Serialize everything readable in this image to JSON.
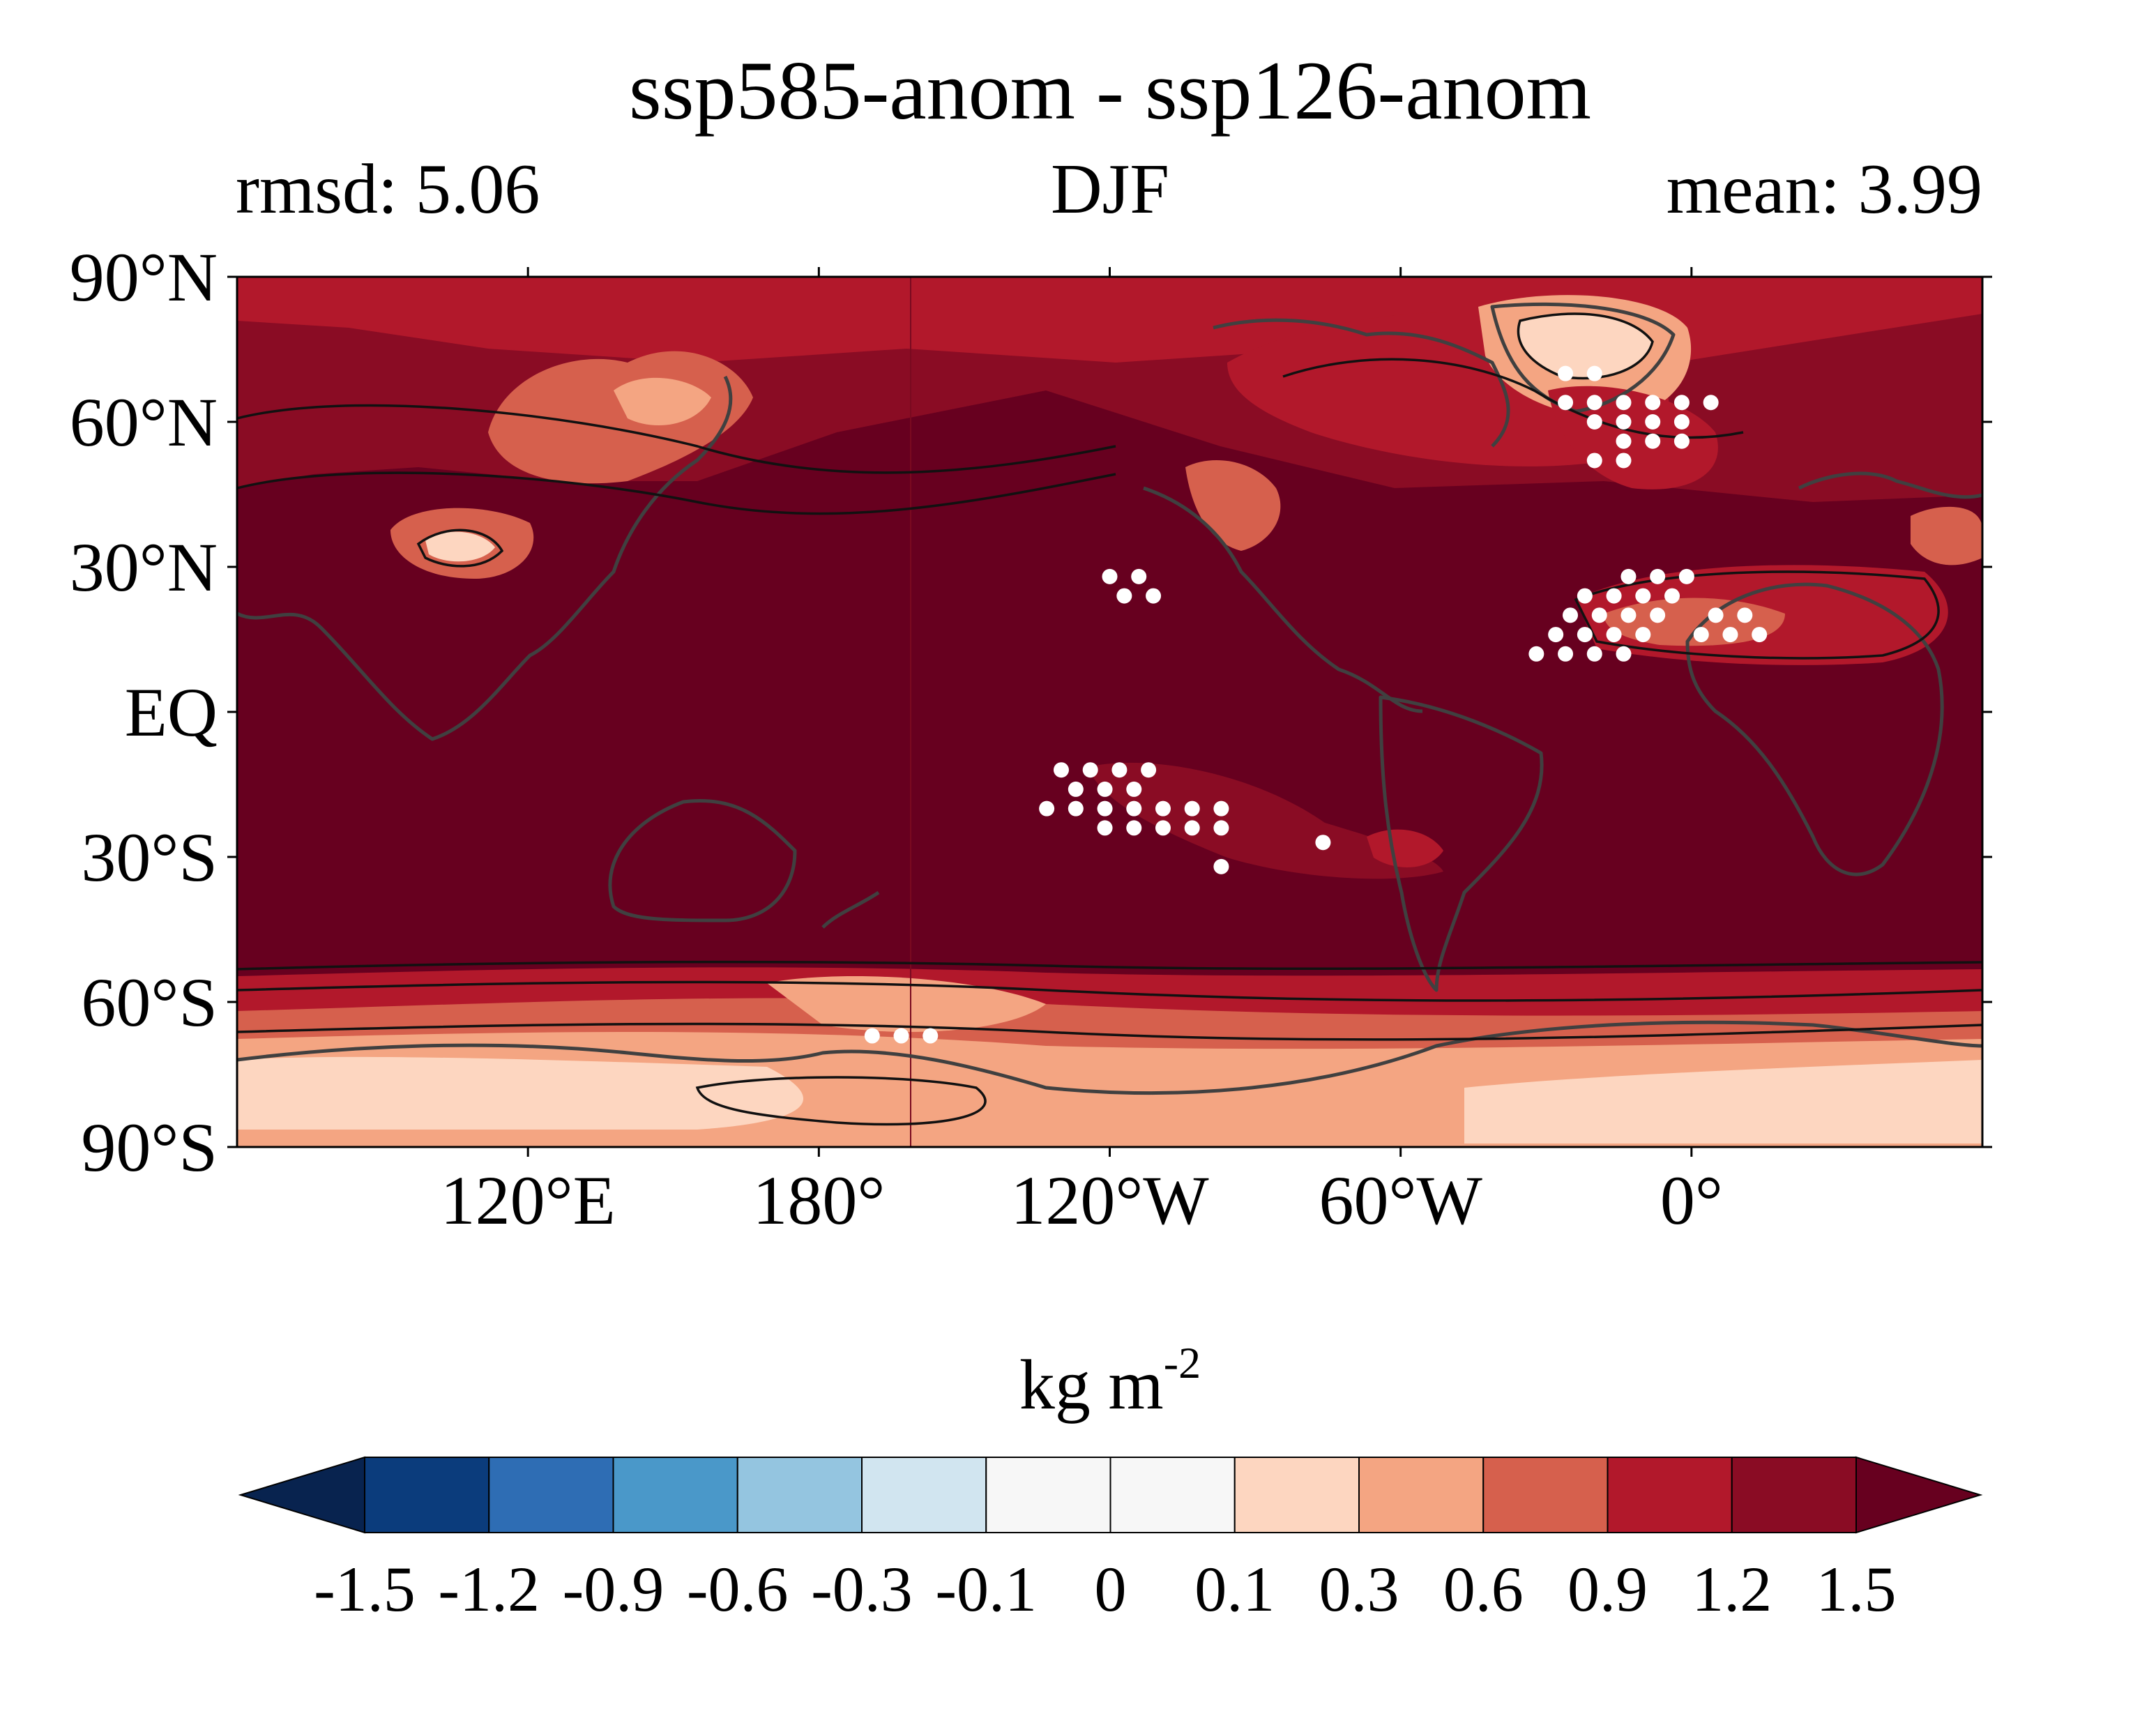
{
  "figure": {
    "title": "ssp585-anom - ssp126-anom",
    "subtitle_left": "rmsd: 5.06",
    "subtitle_center": "DJF",
    "subtitle_right": "mean: 3.99"
  },
  "map": {
    "lon_range": [
      60,
      420
    ],
    "lat_range": [
      -90,
      90
    ],
    "lat_ticks": [
      {
        "value": 90,
        "label": "90°N"
      },
      {
        "value": 60,
        "label": "60°N"
      },
      {
        "value": 30,
        "label": "30°N"
      },
      {
        "value": 0,
        "label": "EQ"
      },
      {
        "value": -30,
        "label": "30°S"
      },
      {
        "value": -60,
        "label": "60°S"
      },
      {
        "value": -90,
        "label": "90°S"
      }
    ],
    "lon_ticks": [
      {
        "value": 120,
        "label": "120°E"
      },
      {
        "value": 180,
        "label": "180°"
      },
      {
        "value": 240,
        "label": "120°W"
      },
      {
        "value": 300,
        "label": "60°W"
      },
      {
        "value": 360,
        "label": "0°"
      }
    ],
    "background_color": "#67001f",
    "coast_color": "#404040",
    "contour_color": "#111111",
    "stipple_color": "#ffffff"
  },
  "colorbar": {
    "units_label": "kg m",
    "units_exponent": "-2",
    "levels": [
      "-1.5",
      "-1.2",
      "-0.9",
      "-0.6",
      "-0.3",
      "-0.1",
      "0",
      "0.1",
      "0.3",
      "0.6",
      "0.9",
      "1.2",
      "1.5"
    ],
    "colors": [
      "#08234f",
      "#0b3c7c",
      "#2e6db4",
      "#4a98c9",
      "#94c5e0",
      "#d1e5f0",
      "#f7f7f7",
      "#f7f7f7",
      "#fdd6c0",
      "#f4a582",
      "#d6604d",
      "#b2182b",
      "#8a0c24",
      "#67001f"
    ]
  }
}
